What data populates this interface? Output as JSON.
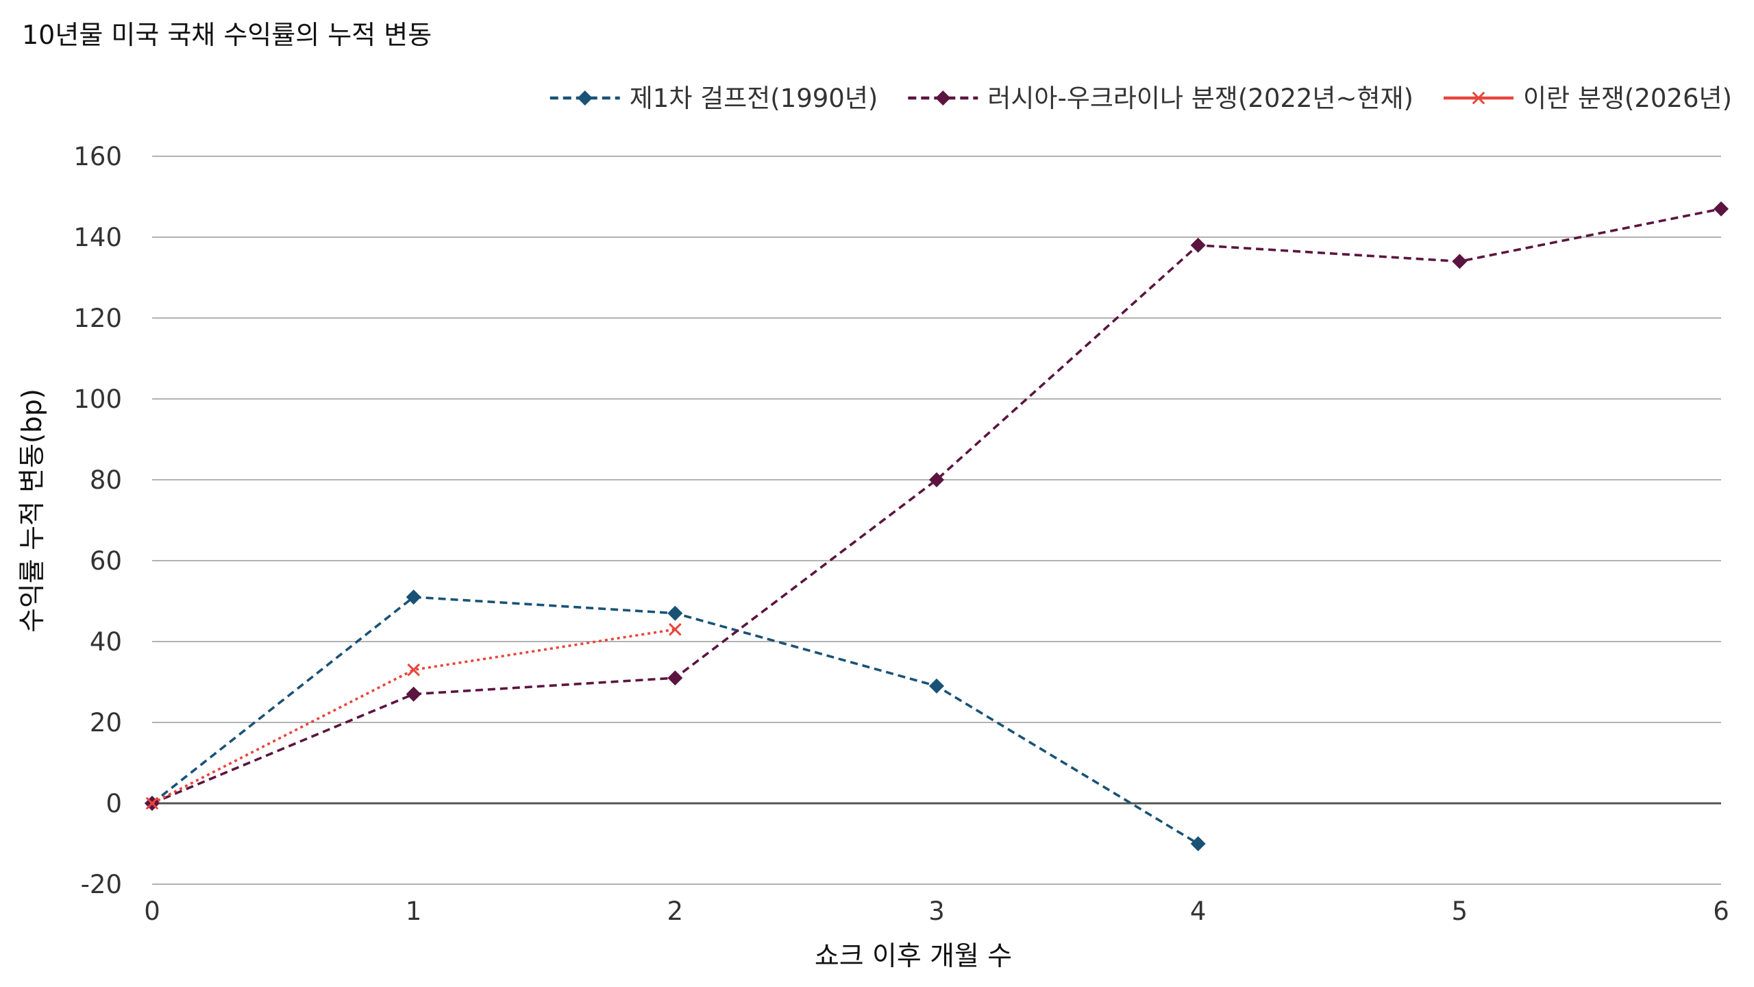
{
  "chart_data": {
    "type": "line",
    "title": "10년물 미국 국채 수익률의 누적 변동",
    "xlabel": "쇼크 이후 개월 수",
    "ylabel": "수익률 누적 변동(bp)",
    "xlim": [
      0,
      6
    ],
    "ylim": [
      -20,
      160
    ],
    "x_ticks": [
      "0",
      "1",
      "2",
      "3",
      "4",
      "5",
      "6"
    ],
    "y_ticks": [
      "160",
      "140",
      "120",
      "100",
      "80",
      "60",
      "40",
      "20",
      "0",
      "-20"
    ],
    "grid": true,
    "legend_position": "top-right",
    "series": [
      {
        "name": "제1차 걸프전(1990년)",
        "color": "#1a5276",
        "marker": "diamond",
        "line_style": "dashed",
        "points": [
          [
            0,
            0
          ],
          [
            1,
            51
          ],
          [
            2,
            47
          ],
          [
            3,
            29
          ],
          [
            4,
            -10
          ]
        ]
      },
      {
        "name": "러시아-우크라이나 분쟁(2022년~현재)",
        "color": "#5b1540",
        "marker": "diamond",
        "line_style": "dashed",
        "points": [
          [
            0,
            0
          ],
          [
            1,
            27
          ],
          [
            2,
            31
          ],
          [
            3,
            80
          ],
          [
            4,
            138
          ],
          [
            5,
            134
          ],
          [
            6,
            147
          ]
        ]
      },
      {
        "name": "이란 분쟁(2026년)",
        "color": "#e8453c",
        "marker": "x",
        "line_style": "dotted",
        "points": [
          [
            0,
            0
          ],
          [
            1,
            33
          ],
          [
            2,
            43
          ]
        ]
      }
    ]
  }
}
